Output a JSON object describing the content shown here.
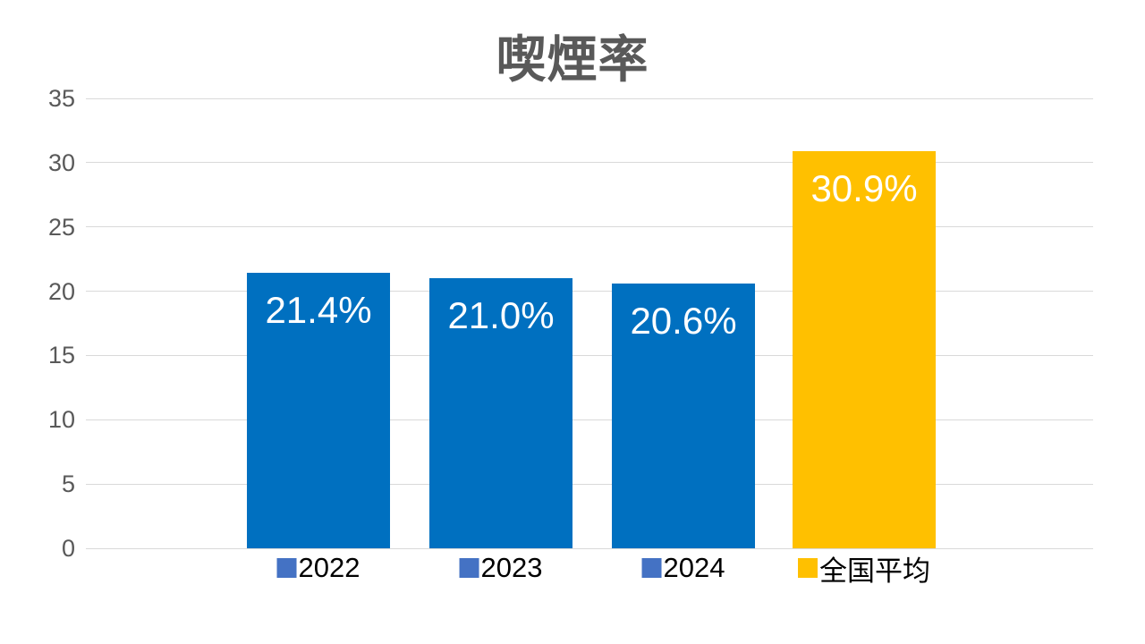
{
  "chart_data": {
    "type": "bar",
    "title": "喫煙率",
    "categories": [
      "2022",
      "2023",
      "2024",
      "全国平均"
    ],
    "category_slugs": [
      "2022",
      "2023",
      "2024",
      "national-average"
    ],
    "values": [
      21.4,
      21.0,
      20.6,
      30.9
    ],
    "value_labels": [
      "21.4%",
      "21.0%",
      "20.6%",
      "30.9%"
    ],
    "series": [
      {
        "name": "2022",
        "values": [
          21.4
        ]
      },
      {
        "name": "2023",
        "values": [
          21.0
        ]
      },
      {
        "name": "2024",
        "values": [
          20.6
        ]
      },
      {
        "name": "全国平均",
        "values": [
          30.9
        ]
      }
    ],
    "bar_colors": [
      "#0070C0",
      "#0070C0",
      "#0070C0",
      "#FFC000"
    ],
    "legend_marker_colors": [
      "#4472C4",
      "#4472C4",
      "#4472C4",
      "#FFC000"
    ],
    "yticks": [
      0,
      5,
      10,
      15,
      20,
      25,
      30,
      35
    ],
    "ylim": [
      0,
      35
    ],
    "xlabel": "",
    "ylabel": "",
    "grid": true,
    "legend_position": "below-each-bar",
    "colors": {
      "grid": "#D9D9D9",
      "axis_text": "#595959",
      "title_text": "#595959",
      "value_text": "#FFFFFF",
      "category_text": "#000000",
      "background": "#FFFFFF"
    }
  }
}
